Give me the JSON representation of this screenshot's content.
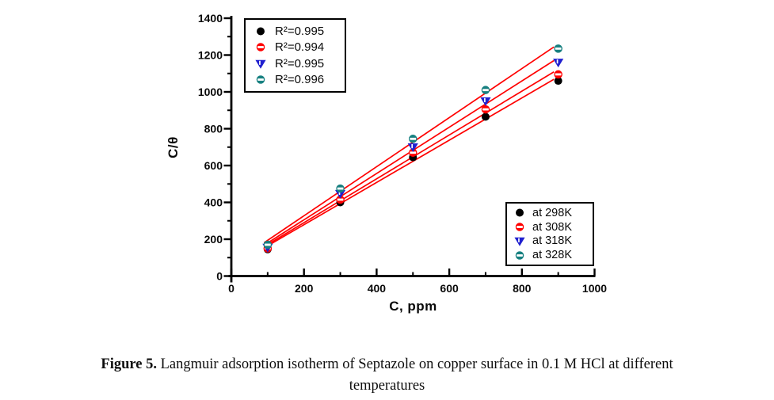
{
  "chart_data": {
    "type": "scatter",
    "title": "",
    "xlabel": "C, ppm",
    "ylabel": "C/θ",
    "xlim": [
      0,
      1000
    ],
    "ylim": [
      0,
      1400
    ],
    "x_major_ticks": [
      0,
      200,
      400,
      600,
      800,
      1000
    ],
    "x_minor_ticks": [
      100,
      300,
      500,
      700,
      900
    ],
    "y_major_ticks": [
      0,
      200,
      400,
      600,
      800,
      1000,
      1200,
      1400
    ],
    "y_minor_ticks": [
      100,
      300,
      500,
      700,
      900,
      1100,
      1300
    ],
    "grid": false,
    "axis_color": "#000000",
    "fit_line_color": "#ff0000",
    "fit_line_x_range": [
      90,
      888
    ],
    "legend_r2_position": "top-left",
    "legend_series_position": "bottom-right",
    "x": [
      100,
      300,
      500,
      700,
      900
    ],
    "series": [
      {
        "name": "at 298K",
        "r2_label": "R²=0.995",
        "color": "#000000",
        "marker": "circle-solid",
        "values": [
          145,
          400,
          645,
          865,
          1060
        ]
      },
      {
        "name": "at 308K",
        "r2_label": "R²=0.994",
        "color": "#ff0000",
        "marker": "circle-halfband",
        "values": [
          150,
          415,
          670,
          905,
          1095
        ]
      },
      {
        "name": "at 318K",
        "r2_label": "R²=0.995",
        "color": "#2020cf",
        "marker": "triangle-down-halfband",
        "values": [
          155,
          447,
          700,
          950,
          1160
        ]
      },
      {
        "name": "at 328K",
        "r2_label": "R²=0.996",
        "color": "#178080",
        "marker": "circle-halfband",
        "values": [
          170,
          475,
          745,
          1010,
          1235
        ]
      }
    ]
  },
  "caption": {
    "label": "Figure 5.",
    "line1_rest": " Langmuir adsorption isotherm of Septazole on copper surface in 0.1 M HCl at different",
    "line2": "temperatures"
  }
}
